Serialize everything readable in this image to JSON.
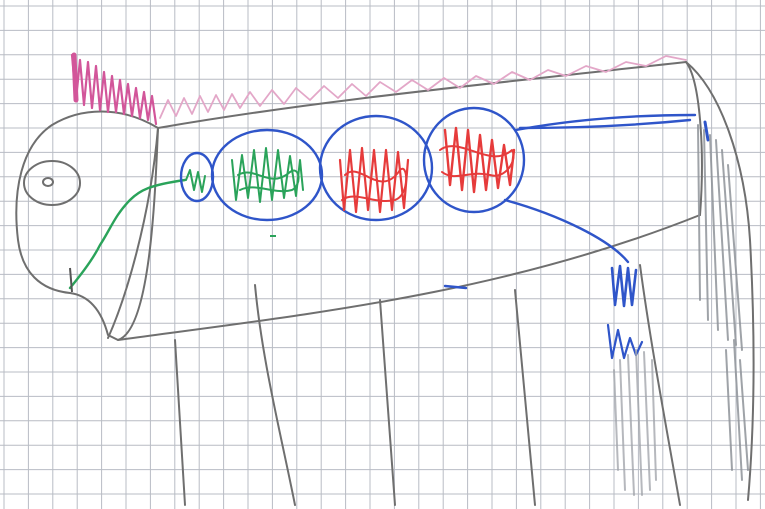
{
  "image": {
    "subject": "horse-drawing-on-grid-paper"
  },
  "colors": {
    "paper": "#ffffff",
    "grid": "#b8bcc4",
    "outline": "#6f6f6f",
    "mane": "#d2569a",
    "mane_light": "#e3a7c8",
    "digestive_tract": "#2f55c9",
    "small_organ": "#2aa35a",
    "red_organ": "#e63b3b",
    "tail": "#8f9399",
    "esophagus": "#2aa35a"
  },
  "icons": {
    "eye": "eye-icon"
  }
}
